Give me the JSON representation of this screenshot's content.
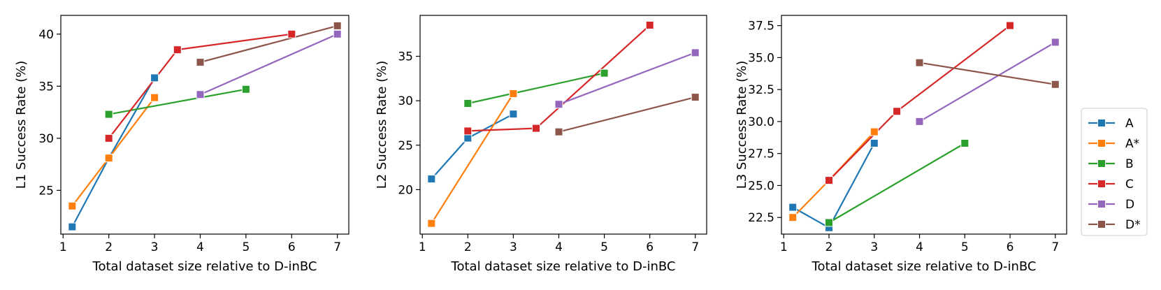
{
  "chart_data": [
    {
      "type": "line",
      "ylabel": "L1 Success Rate (%)",
      "xlabel": "Total dataset size relative to D-inBC",
      "xlim": [
        0.95,
        7.25
      ],
      "ylim": [
        20.8,
        41.8
      ],
      "xticks": [
        1,
        2,
        3,
        4,
        5,
        6,
        7
      ],
      "yticks": [
        25,
        30,
        35,
        40
      ],
      "ytick_labels": [
        "25",
        "30",
        "35",
        "40"
      ],
      "series": [
        {
          "name": "A",
          "color": "#1f77b4",
          "points": [
            [
              1.2,
              21.5
            ],
            [
              2,
              28.1
            ],
            [
              3,
              35.8
            ]
          ]
        },
        {
          "name": "A*",
          "color": "#ff7f0e",
          "points": [
            [
              1.2,
              23.5
            ],
            [
              2,
              28.1
            ],
            [
              3,
              33.9
            ]
          ]
        },
        {
          "name": "B",
          "color": "#2ca02c",
          "points": [
            [
              2,
              32.3
            ],
            [
              5,
              34.7
            ]
          ]
        },
        {
          "name": "C",
          "color": "#d62728",
          "points": [
            [
              2,
              30.0
            ],
            [
              3.5,
              38.5
            ],
            [
              6,
              40.0
            ]
          ]
        },
        {
          "name": "D",
          "color": "#9467bd",
          "points": [
            [
              4,
              34.2
            ],
            [
              7,
              40.0
            ]
          ]
        },
        {
          "name": "D*",
          "color": "#8c564b",
          "points": [
            [
              4,
              37.3
            ],
            [
              7,
              40.8
            ]
          ]
        }
      ]
    },
    {
      "type": "line",
      "ylabel": "L2 Success Rate (%)",
      "xlabel": "Total dataset size relative to D-inBC",
      "xlim": [
        0.95,
        7.25
      ],
      "ylim": [
        15.0,
        39.6
      ],
      "xticks": [
        1,
        2,
        3,
        4,
        5,
        6,
        7
      ],
      "yticks": [
        20,
        25,
        30,
        35
      ],
      "ytick_labels": [
        "20",
        "25",
        "30",
        "35"
      ],
      "series": [
        {
          "name": "A",
          "color": "#1f77b4",
          "points": [
            [
              1.2,
              21.2
            ],
            [
              2,
              25.8
            ],
            [
              3,
              28.5
            ]
          ]
        },
        {
          "name": "A*",
          "color": "#ff7f0e",
          "points": [
            [
              1.2,
              16.2
            ],
            [
              3,
              30.8
            ]
          ]
        },
        {
          "name": "B",
          "color": "#2ca02c",
          "points": [
            [
              2,
              29.7
            ],
            [
              5,
              33.1
            ]
          ]
        },
        {
          "name": "C",
          "color": "#d62728",
          "points": [
            [
              2,
              26.6
            ],
            [
              3.5,
              26.9
            ],
            [
              6,
              38.5
            ]
          ]
        },
        {
          "name": "D",
          "color": "#9467bd",
          "points": [
            [
              4,
              29.6
            ],
            [
              7,
              35.4
            ]
          ]
        },
        {
          "name": "D*",
          "color": "#8c564b",
          "points": [
            [
              4,
              26.5
            ],
            [
              7,
              30.4
            ]
          ]
        }
      ]
    },
    {
      "type": "line",
      "ylabel": "L3 Success Rate (%)",
      "xlabel": "Total dataset size relative to D-inBC",
      "xlim": [
        0.95,
        7.25
      ],
      "ylim": [
        21.2,
        38.3
      ],
      "xticks": [
        1,
        2,
        3,
        4,
        5,
        6,
        7
      ],
      "yticks": [
        22.5,
        25.0,
        27.5,
        30.0,
        32.5,
        35.0,
        37.5
      ],
      "ytick_labels": [
        "22.5",
        "25.0",
        "27.5",
        "30.0",
        "32.5",
        "35.0",
        "37.5"
      ],
      "series": [
        {
          "name": "A",
          "color": "#1f77b4",
          "points": [
            [
              1.2,
              23.3
            ],
            [
              2,
              21.7
            ],
            [
              3,
              28.3
            ]
          ]
        },
        {
          "name": "A*",
          "color": "#ff7f0e",
          "points": [
            [
              1.2,
              22.5
            ],
            [
              2,
              25.4
            ],
            [
              3,
              29.2
            ]
          ]
        },
        {
          "name": "B",
          "color": "#2ca02c",
          "points": [
            [
              2,
              22.1
            ],
            [
              5,
              28.3
            ]
          ]
        },
        {
          "name": "C",
          "color": "#d62728",
          "points": [
            [
              2,
              25.4
            ],
            [
              3.5,
              30.8
            ],
            [
              6,
              37.5
            ]
          ]
        },
        {
          "name": "D",
          "color": "#9467bd",
          "points": [
            [
              4,
              30.0
            ],
            [
              7,
              36.2
            ]
          ]
        },
        {
          "name": "D*",
          "color": "#8c564b",
          "points": [
            [
              4,
              34.6
            ],
            [
              7,
              32.9
            ]
          ]
        }
      ]
    }
  ],
  "legend": {
    "placement": "right",
    "items": [
      {
        "label": "A",
        "color": "#1f77b4"
      },
      {
        "label": "A*",
        "color": "#ff7f0e"
      },
      {
        "label": "B",
        "color": "#2ca02c"
      },
      {
        "label": "C",
        "color": "#d62728"
      },
      {
        "label": "D",
        "color": "#9467bd"
      },
      {
        "label": "D*",
        "color": "#8c564b"
      }
    ]
  }
}
